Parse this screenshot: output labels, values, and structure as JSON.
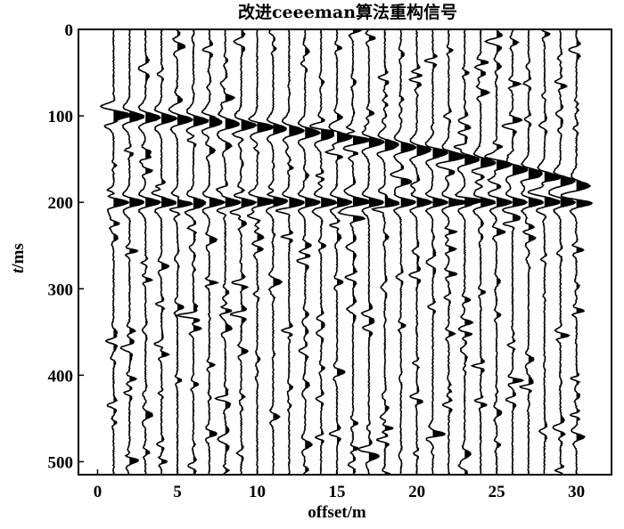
{
  "chart_data": {
    "type": "seismic-wiggle",
    "title": "改进ceeeman算法重构信号",
    "xlabel": "offset/m",
    "ylabel_var": "t",
    "ylabel_unit": "/ms",
    "xlim": [
      -1.2,
      32.2
    ],
    "ylim": [
      0,
      515
    ],
    "x_ticks": [
      {
        "value": 0,
        "label": "0"
      },
      {
        "value": 5,
        "label": "5"
      },
      {
        "value": 10,
        "label": "10"
      },
      {
        "value": 15,
        "label": "15"
      },
      {
        "value": 20,
        "label": "20"
      },
      {
        "value": 25,
        "label": "25"
      },
      {
        "value": 30,
        "label": "30"
      }
    ],
    "y_ticks": [
      {
        "value": 0,
        "label": "0"
      },
      {
        "value": 100,
        "label": "100"
      },
      {
        "value": 200,
        "label": "200"
      },
      {
        "value": 300,
        "label": "300"
      },
      {
        "value": 400,
        "label": "400"
      },
      {
        "value": 500,
        "label": "500"
      }
    ],
    "trace_offsets": [
      1,
      2,
      3,
      4,
      5,
      6,
      7,
      8,
      9,
      10,
      11,
      12,
      13,
      14,
      15,
      16,
      17,
      18,
      19,
      20,
      21,
      22,
      23,
      24,
      25,
      26,
      27,
      28,
      29,
      30
    ],
    "events": [
      {
        "kind": "hyperbolic",
        "t0_ms": 100,
        "t_end_ms": 180,
        "amplitude": 1.0
      },
      {
        "kind": "flat",
        "t_ms": 200,
        "amplitude": 1.0
      }
    ],
    "background_noise": true,
    "line_color": "#000000",
    "fill_color": "#000000"
  }
}
